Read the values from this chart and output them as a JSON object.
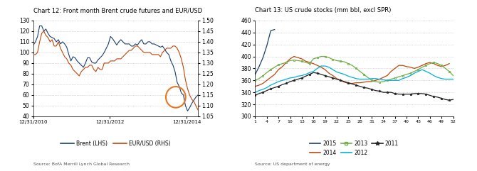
{
  "chart1": {
    "title": "Chart 12: Front month Brent crude futures and EUR/USD",
    "ylim_left": [
      40,
      130
    ],
    "ylim_right": [
      1.05,
      1.5
    ],
    "yticks_left": [
      40,
      50,
      60,
      70,
      80,
      90,
      100,
      110,
      120,
      130
    ],
    "yticks_right": [
      1.05,
      1.1,
      1.15,
      1.2,
      1.25,
      1.3,
      1.35,
      1.4,
      1.45,
      1.5
    ],
    "xtick_labels": [
      "12/31/2010",
      "12/31/2012",
      "12/31/2014"
    ],
    "brent_color": "#1a3f6f",
    "eurusd_color": "#c0450a",
    "legend_brent": "Brent (LHS)",
    "legend_eurusd": "EUR/USD (RHS)",
    "source": "Source: BofA Merrill Lynch Global Research",
    "circle_color": "#e87722"
  },
  "chart2": {
    "title": "Chart 13: US crude stocks (mm bbl, excl SPR)",
    "ylim": [
      300,
      460
    ],
    "yticks": [
      300,
      320,
      340,
      360,
      380,
      400,
      420,
      440,
      460
    ],
    "xtick_labels": [
      "1",
      "4",
      "7",
      "10",
      "13",
      "16",
      "19",
      "22",
      "25",
      "28",
      "31",
      "34",
      "37",
      "40",
      "43",
      "46",
      "49",
      "52"
    ],
    "xtick_vals": [
      1,
      4,
      7,
      10,
      13,
      16,
      19,
      22,
      25,
      28,
      31,
      34,
      37,
      40,
      43,
      46,
      49,
      52
    ],
    "color_2015": "#1a3f6f",
    "color_2014": "#c0450a",
    "color_2013": "#70ad47",
    "color_2012": "#00b0d8",
    "color_2011": "#222222",
    "source": "Source: US department of energy"
  },
  "brent": [
    107,
    110,
    115,
    125,
    125,
    120,
    122,
    118,
    115,
    114,
    113,
    110,
    112,
    108,
    110,
    108,
    105,
    98,
    92,
    96,
    95,
    92,
    90,
    88,
    86,
    90,
    95,
    95,
    91,
    90,
    90,
    93,
    95,
    97,
    100,
    104,
    108,
    115,
    113,
    110,
    107,
    110,
    112,
    110,
    108,
    108,
    108,
    106,
    106,
    108,
    107,
    110,
    112,
    108,
    108,
    110,
    110,
    108,
    108,
    107,
    106,
    105,
    106,
    103,
    100,
    98,
    92,
    88,
    82,
    72,
    68,
    62,
    60,
    50,
    45,
    48,
    52,
    55,
    58,
    60
  ],
  "eurusd": [
    1.34,
    1.34,
    1.35,
    1.4,
    1.44,
    1.45,
    1.43,
    1.42,
    1.4,
    1.41,
    1.38,
    1.38,
    1.4,
    1.37,
    1.35,
    1.33,
    1.32,
    1.3,
    1.29,
    1.27,
    1.26,
    1.25,
    1.24,
    1.26,
    1.27,
    1.28,
    1.28,
    1.29,
    1.29,
    1.27,
    1.26,
    1.28,
    1.27,
    1.27,
    1.3,
    1.3,
    1.3,
    1.31,
    1.31,
    1.31,
    1.32,
    1.32,
    1.32,
    1.33,
    1.34,
    1.35,
    1.36,
    1.36,
    1.37,
    1.38,
    1.38,
    1.37,
    1.36,
    1.35,
    1.35,
    1.35,
    1.35,
    1.34,
    1.34,
    1.34,
    1.34,
    1.33,
    1.35,
    1.36,
    1.37,
    1.37,
    1.37,
    1.38,
    1.38,
    1.37,
    1.35,
    1.32,
    1.28,
    1.22,
    1.18,
    1.15,
    1.13,
    1.12,
    1.1,
    1.08
  ],
  "stocks_2015": [
    370,
    383,
    398,
    418,
    443,
    445
  ],
  "stocks_2015_x": [
    1,
    2,
    3,
    4,
    5,
    6
  ],
  "stocks_2014": [
    350,
    352,
    355,
    360,
    365,
    370,
    378,
    383,
    390,
    396,
    400,
    398,
    396,
    392,
    390,
    388,
    385,
    382,
    378,
    372,
    368,
    363,
    360,
    357,
    355,
    355,
    356,
    356,
    357,
    358,
    358,
    360,
    362,
    365,
    368,
    375,
    380,
    385,
    385,
    383,
    382,
    380,
    382,
    385,
    388,
    390,
    388,
    385,
    383,
    385,
    388
  ],
  "stocks_2014_x": [
    1,
    2,
    3,
    4,
    5,
    6,
    7,
    8,
    9,
    10,
    11,
    12,
    13,
    14,
    15,
    16,
    17,
    18,
    19,
    20,
    21,
    22,
    23,
    24,
    25,
    26,
    27,
    28,
    29,
    30,
    31,
    32,
    33,
    34,
    35,
    36,
    37,
    38,
    39,
    40,
    41,
    42,
    43,
    44,
    45,
    46,
    47,
    48,
    49,
    50,
    51
  ],
  "stocks_2013": [
    360,
    363,
    368,
    373,
    378,
    382,
    386,
    388,
    390,
    393,
    394,
    393,
    392,
    390,
    388,
    396,
    398,
    400,
    400,
    398,
    395,
    393,
    392,
    391,
    388,
    385,
    380,
    375,
    370,
    365,
    360,
    358,
    357,
    358,
    360,
    362,
    364,
    366,
    368,
    370,
    372,
    375,
    378,
    382,
    385,
    388,
    390,
    388,
    385,
    380,
    375,
    368
  ],
  "stocks_2013_x": [
    1,
    2,
    3,
    4,
    5,
    6,
    7,
    8,
    9,
    10,
    11,
    12,
    13,
    14,
    15,
    16,
    17,
    18,
    19,
    20,
    21,
    22,
    23,
    24,
    25,
    26,
    27,
    28,
    29,
    30,
    31,
    32,
    33,
    34,
    35,
    36,
    37,
    38,
    39,
    40,
    41,
    42,
    43,
    44,
    45,
    46,
    47,
    48,
    49,
    50,
    51,
    52
  ],
  "stocks_2012": [
    340,
    343,
    345,
    348,
    352,
    355,
    358,
    360,
    362,
    364,
    365,
    367,
    368,
    370,
    373,
    375,
    380,
    384,
    384,
    382,
    378,
    374,
    372,
    370,
    367,
    365,
    363,
    362,
    362,
    362,
    363,
    363,
    362,
    361,
    360,
    360,
    360,
    360,
    363,
    365,
    368,
    372,
    375,
    378,
    375,
    372,
    368,
    365,
    363,
    362,
    362,
    362
  ],
  "stocks_2012_x": [
    1,
    2,
    3,
    4,
    5,
    6,
    7,
    8,
    9,
    10,
    11,
    12,
    13,
    14,
    15,
    16,
    17,
    18,
    19,
    20,
    21,
    22,
    23,
    24,
    25,
    26,
    27,
    28,
    29,
    30,
    31,
    32,
    33,
    34,
    35,
    36,
    37,
    38,
    39,
    40,
    41,
    42,
    43,
    44,
    45,
    46,
    47,
    48,
    49,
    50,
    51,
    52
  ],
  "stocks_2011": [
    335,
    338,
    340,
    343,
    346,
    348,
    350,
    353,
    355,
    358,
    360,
    362,
    364,
    367,
    370,
    373,
    372,
    370,
    368,
    366,
    364,
    362,
    360,
    358,
    356,
    354,
    352,
    350,
    348,
    347,
    345,
    343,
    342,
    340,
    340,
    340,
    338,
    337,
    337,
    337,
    337,
    338,
    338,
    338,
    337,
    335,
    333,
    332,
    330,
    328,
    327,
    328
  ],
  "stocks_2011_x": [
    1,
    2,
    3,
    4,
    5,
    6,
    7,
    8,
    9,
    10,
    11,
    12,
    13,
    14,
    15,
    16,
    17,
    18,
    19,
    20,
    21,
    22,
    23,
    24,
    25,
    26,
    27,
    28,
    29,
    30,
    31,
    32,
    33,
    34,
    35,
    36,
    37,
    38,
    39,
    40,
    41,
    42,
    43,
    44,
    45,
    46,
    47,
    48,
    49,
    50,
    51,
    52
  ]
}
